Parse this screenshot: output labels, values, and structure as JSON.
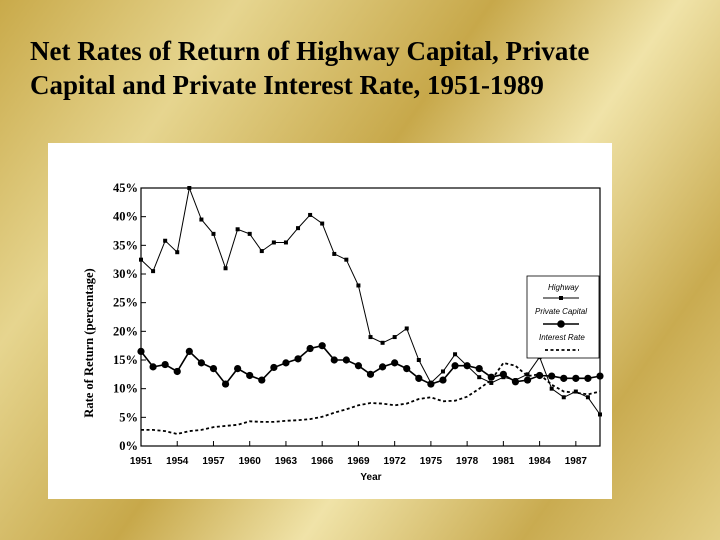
{
  "title": {
    "line1": "Net Rates of Return of Highway Capital, Private",
    "line2": "Capital and Private Interest Rate, 1951-1989"
  },
  "colors": {
    "line": "#000000",
    "panel": "#ffffff"
  },
  "chart_data": {
    "type": "line",
    "xlabel": "Year",
    "ylabel": "Rate of Return (percentage)",
    "xlim": [
      1951,
      1989
    ],
    "ylim": [
      0,
      45
    ],
    "xticks": [
      "1951",
      "1954",
      "1957",
      "1960",
      "1963",
      "1966",
      "1969",
      "1972",
      "1975",
      "1978",
      "1981",
      "1984",
      "1987"
    ],
    "yticks": [
      "0%",
      "5%",
      "10%",
      "15%",
      "20%",
      "25%",
      "30%",
      "35%",
      "40%",
      "45%"
    ],
    "legend_position": "right",
    "x": [
      1951,
      1952,
      1953,
      1954,
      1955,
      1956,
      1957,
      1958,
      1959,
      1960,
      1961,
      1962,
      1963,
      1964,
      1965,
      1966,
      1967,
      1968,
      1969,
      1970,
      1971,
      1972,
      1973,
      1974,
      1975,
      1976,
      1977,
      1978,
      1979,
      1980,
      1981,
      1982,
      1983,
      1984,
      1985,
      1986,
      1987,
      1988,
      1989
    ],
    "series": [
      {
        "name": "Highway",
        "style": "thin-line-small-squares",
        "values": [
          32.5,
          30.5,
          35.8,
          33.8,
          45,
          39.5,
          37,
          31,
          37.8,
          37,
          34,
          35.5,
          35.5,
          38,
          40.3,
          38.8,
          33.5,
          32.5,
          28,
          19,
          18,
          19,
          20.5,
          15,
          11,
          13,
          16,
          14,
          12,
          11,
          12,
          11.5,
          12.5,
          15.5,
          10,
          8.5,
          9.5,
          8.5,
          5.5
        ]
      },
      {
        "name": "Private Capital",
        "style": "thick-line-large-dots",
        "values": [
          16.5,
          13.8,
          14.2,
          13,
          16.5,
          14.5,
          13.5,
          10.8,
          13.5,
          12.3,
          11.5,
          13.7,
          14.5,
          15.2,
          17,
          17.5,
          15,
          15,
          14,
          12.5,
          13.8,
          14.5,
          13.5,
          11.8,
          10.8,
          11.5,
          14,
          14,
          13.5,
          12,
          12.5,
          11.2,
          11.5,
          12.3,
          12.2,
          11.8,
          11.8,
          11.8,
          12.2
        ]
      },
      {
        "name": "Interest Rate",
        "style": "dashed-line",
        "values": [
          2.8,
          2.8,
          2.6,
          2.1,
          2.6,
          2.8,
          3.3,
          3.5,
          3.7,
          4.3,
          4.2,
          4.2,
          4.4,
          4.5,
          4.7,
          5.1,
          5.8,
          6.4,
          7.1,
          7.5,
          7.4,
          7.1,
          7.4,
          8.2,
          8.5,
          7.8,
          7.9,
          8.6,
          10,
          11.5,
          14.5,
          14,
          12.2,
          12.5,
          10.7,
          9.5,
          9.3,
          9,
          9.5
        ]
      }
    ]
  }
}
